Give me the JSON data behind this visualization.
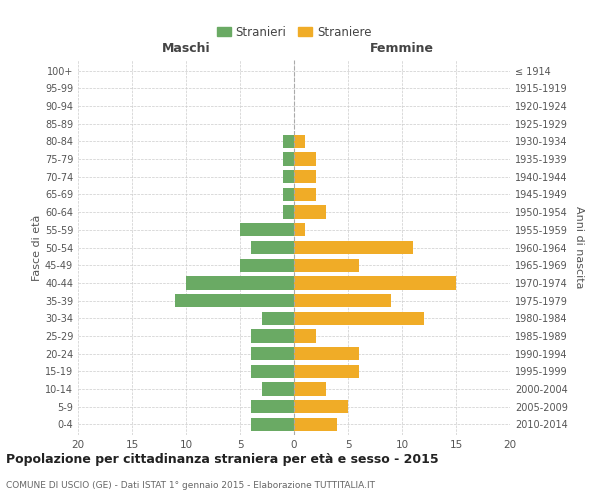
{
  "age_groups": [
    "0-4",
    "5-9",
    "10-14",
    "15-19",
    "20-24",
    "25-29",
    "30-34",
    "35-39",
    "40-44",
    "45-49",
    "50-54",
    "55-59",
    "60-64",
    "65-69",
    "70-74",
    "75-79",
    "80-84",
    "85-89",
    "90-94",
    "95-99",
    "100+"
  ],
  "birth_years": [
    "2010-2014",
    "2005-2009",
    "2000-2004",
    "1995-1999",
    "1990-1994",
    "1985-1989",
    "1980-1984",
    "1975-1979",
    "1970-1974",
    "1965-1969",
    "1960-1964",
    "1955-1959",
    "1950-1954",
    "1945-1949",
    "1940-1944",
    "1935-1939",
    "1930-1934",
    "1925-1929",
    "1920-1924",
    "1915-1919",
    "≤ 1914"
  ],
  "maschi": [
    4,
    4,
    3,
    4,
    4,
    4,
    3,
    11,
    10,
    5,
    4,
    5,
    1,
    1,
    1,
    1,
    1,
    0,
    0,
    0,
    0
  ],
  "femmine": [
    4,
    5,
    3,
    6,
    6,
    2,
    12,
    9,
    15,
    6,
    11,
    1,
    3,
    2,
    2,
    2,
    1,
    0,
    0,
    0,
    0
  ],
  "male_color": "#6aaa64",
  "female_color": "#f0ac27",
  "background_color": "#ffffff",
  "grid_color": "#cccccc",
  "title": "Popolazione per cittadinanza straniera per età e sesso - 2015",
  "subtitle": "COMUNE DI USCIO (GE) - Dati ISTAT 1° gennaio 2015 - Elaborazione TUTTITALIA.IT",
  "xlabel_left": "Maschi",
  "xlabel_right": "Femmine",
  "ylabel_left": "Fasce di età",
  "ylabel_right": "Anni di nascita",
  "legend_male": "Stranieri",
  "legend_female": "Straniere",
  "xlim": 20,
  "bar_height": 0.75
}
